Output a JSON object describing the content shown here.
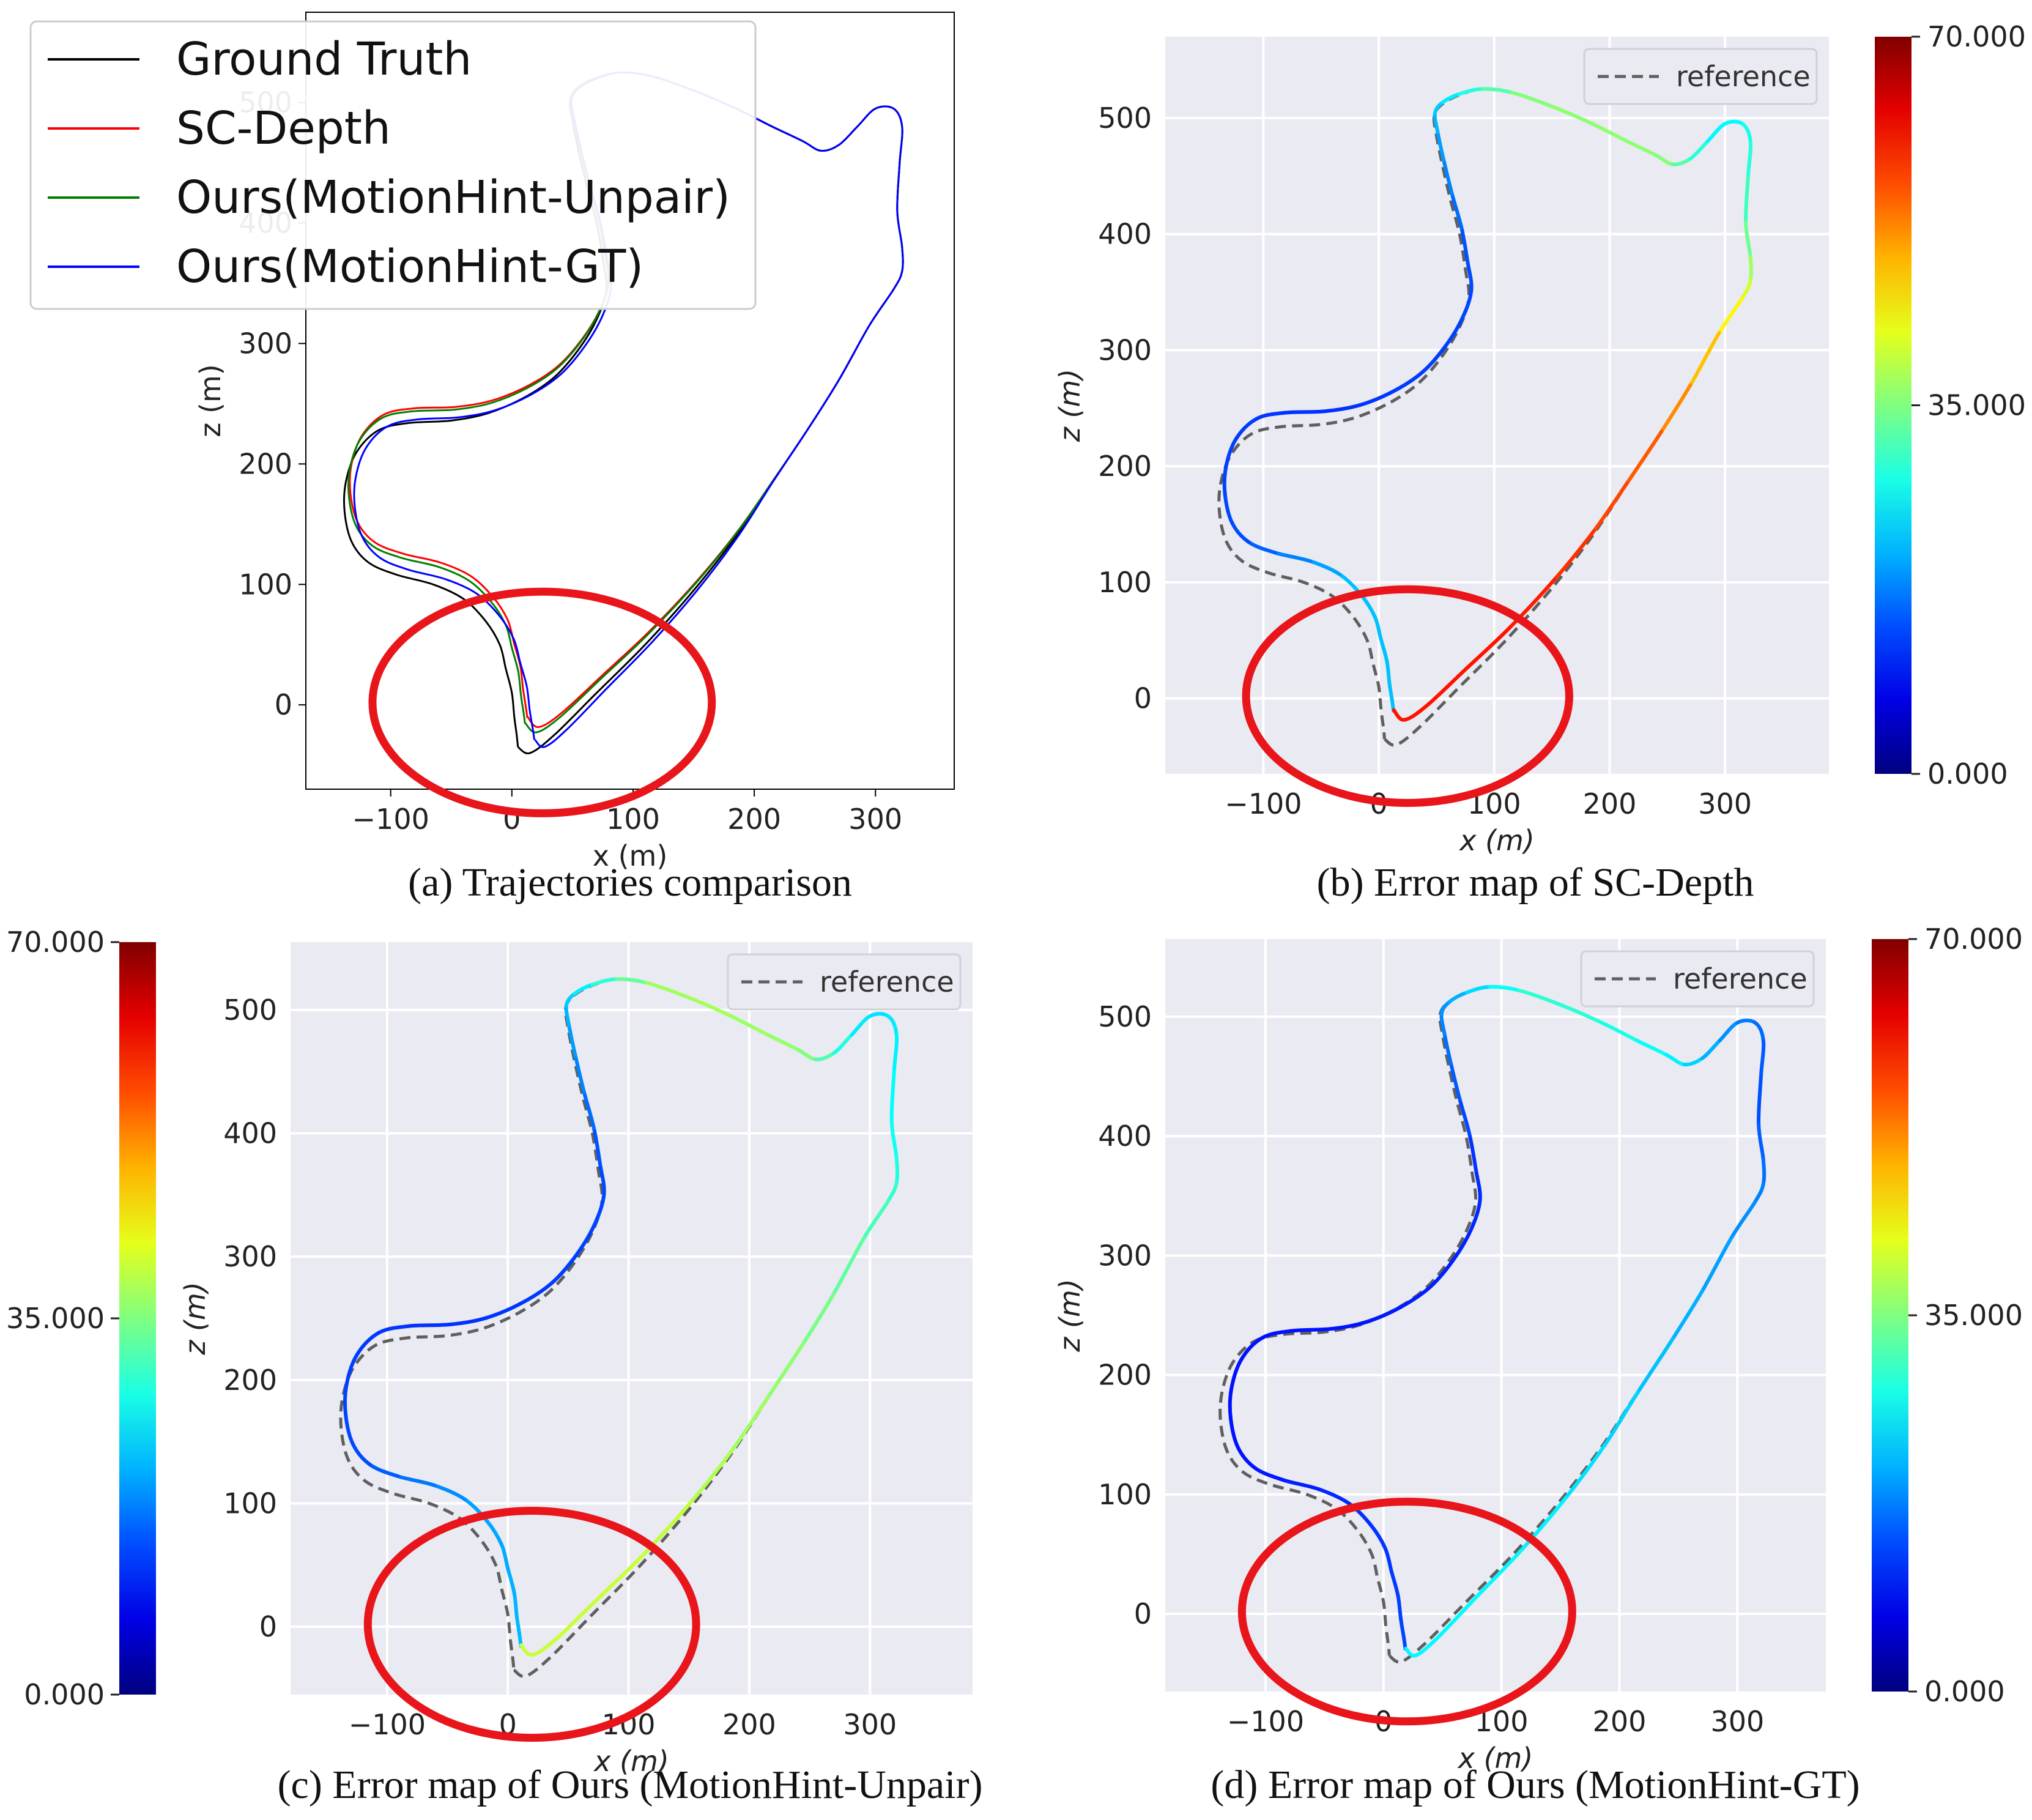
{
  "chart_data": [
    {
      "id": "a",
      "type": "line",
      "style": "plain",
      "caption": "(a) Trajectories comparison",
      "xlabel": "x (m)",
      "ylabel": "z (m)",
      "xlim": [
        -170,
        365
      ],
      "ylim": [
        -70,
        575
      ],
      "xticks": [
        "−100",
        "0",
        "100",
        "200",
        "300"
      ],
      "xtick_values": [
        -100,
        0,
        100,
        200,
        300
      ],
      "yticks": [
        "0",
        "100",
        "200",
        "300",
        "400",
        "500"
      ],
      "ytick_values": [
        0,
        100,
        200,
        300,
        400,
        500
      ],
      "legend": [
        "Ground Truth",
        "SC-Depth",
        "Ours(MotionHint-Unpair)",
        "Ours(MotionHint-GT)"
      ],
      "legend_position": "top-left",
      "series": [
        {
          "name": "Ground Truth",
          "color": "#000000",
          "offset": [
            0,
            0
          ]
        },
        {
          "name": "SC-Depth",
          "color": "#ff0000",
          "offset": [
            8,
            25
          ]
        },
        {
          "name": "Ours(MotionHint-Unpair)",
          "color": "#008000",
          "offset": [
            6,
            20
          ]
        },
        {
          "name": "Ours(MotionHint-GT)",
          "color": "#0000ff",
          "offset": [
            14,
            6
          ]
        }
      ],
      "highlight": {
        "x": 25,
        "y": 2,
        "rx": 70,
        "ry": 46,
        "color": "#e8151b"
      }
    },
    {
      "id": "b",
      "type": "line",
      "style": "seaborn",
      "caption": "(b) Error map of SC-Depth",
      "xlabel": "x (m)",
      "ylabel": "z (m)",
      "xlim": [
        -185,
        390
      ],
      "ylim": [
        -65,
        570
      ],
      "xticks": [
        "−100",
        "0",
        "100",
        "200",
        "300"
      ],
      "xtick_values": [
        -100,
        0,
        100,
        200,
        300
      ],
      "yticks": [
        "0",
        "100",
        "200",
        "300",
        "400",
        "500"
      ],
      "ytick_values": [
        0,
        100,
        200,
        300,
        400,
        500
      ],
      "legend": [
        "reference"
      ],
      "legend_position": "top-right",
      "offset": [
        8,
        25
      ],
      "error_profile": [
        [
          0,
          22
        ],
        [
          0.12,
          22
        ],
        [
          0.18,
          14
        ],
        [
          0.3,
          12
        ],
        [
          0.42,
          14
        ],
        [
          0.52,
          24
        ],
        [
          0.58,
          36
        ],
        [
          0.64,
          36
        ],
        [
          0.7,
          25
        ],
        [
          0.76,
          30
        ],
        [
          0.82,
          42
        ],
        [
          0.88,
          55
        ],
        [
          0.94,
          60
        ],
        [
          1,
          60
        ]
      ],
      "colorbar": {
        "min": 0,
        "max": 70,
        "labels": [
          "70.000",
          "35.000",
          "0.000"
        ],
        "position": "right"
      },
      "highlight": {
        "x": 25,
        "y": 2,
        "rx": 70,
        "ry": 46,
        "color": "#e8151b"
      }
    },
    {
      "id": "c",
      "type": "line",
      "style": "seaborn",
      "caption": "(c) Error map of Ours (MotionHint-Unpair)",
      "xlabel": "x (m)",
      "ylabel": "z (m)",
      "xlim": [
        -180,
        385
      ],
      "ylim": [
        -55,
        555
      ],
      "xticks": [
        "−100",
        "0",
        "100",
        "200",
        "300"
      ],
      "xtick_values": [
        -100,
        0,
        100,
        200,
        300
      ],
      "yticks": [
        "0",
        "100",
        "200",
        "300",
        "400",
        "500"
      ],
      "ytick_values": [
        0,
        100,
        200,
        300,
        400,
        500
      ],
      "legend": [
        "reference"
      ],
      "legend_position": "top-right",
      "offset": [
        6,
        20
      ],
      "error_profile": [
        [
          0,
          22
        ],
        [
          0.12,
          20
        ],
        [
          0.18,
          14
        ],
        [
          0.3,
          12
        ],
        [
          0.42,
          14
        ],
        [
          0.52,
          24
        ],
        [
          0.58,
          38
        ],
        [
          0.64,
          36
        ],
        [
          0.7,
          24
        ],
        [
          0.76,
          26
        ],
        [
          0.82,
          30
        ],
        [
          0.88,
          36
        ],
        [
          0.94,
          40
        ],
        [
          1,
          40
        ]
      ],
      "colorbar": {
        "min": 0,
        "max": 70,
        "labels": [
          "70.000",
          "35.000",
          "0.000"
        ],
        "position": "left"
      },
      "highlight": {
        "x": 20,
        "y": 2,
        "rx": 68,
        "ry": 46,
        "color": "#e8151b"
      }
    },
    {
      "id": "d",
      "type": "line",
      "style": "seaborn",
      "caption": "(d) Error map of Ours  (MotionHint-GT)",
      "xlabel": "x (m)",
      "ylabel": "z (m)",
      "xlim": [
        -185,
        375
      ],
      "ylim": [
        -65,
        565
      ],
      "xticks": [
        "−100",
        "0",
        "100",
        "200",
        "300"
      ],
      "xtick_values": [
        -100,
        0,
        100,
        200,
        300
      ],
      "yticks": [
        "0",
        "100",
        "200",
        "300",
        "400",
        "500"
      ],
      "ytick_values": [
        0,
        100,
        200,
        300,
        400,
        500
      ],
      "legend": [
        "reference"
      ],
      "legend_position": "top-right",
      "offset": [
        14,
        6
      ],
      "error_profile": [
        [
          0,
          14
        ],
        [
          0.12,
          12
        ],
        [
          0.18,
          10
        ],
        [
          0.3,
          10
        ],
        [
          0.42,
          12
        ],
        [
          0.52,
          20
        ],
        [
          0.58,
          30
        ],
        [
          0.64,
          26
        ],
        [
          0.7,
          18
        ],
        [
          0.76,
          14
        ],
        [
          0.82,
          18
        ],
        [
          0.88,
          22
        ],
        [
          0.94,
          26
        ],
        [
          1,
          26
        ]
      ],
      "colorbar": {
        "min": 0,
        "max": 70,
        "labels": [
          "70.000",
          "35.000",
          "0.000"
        ],
        "position": "right"
      },
      "highlight": {
        "x": 20,
        "y": 2,
        "rx": 70,
        "ry": 46,
        "color": "#e8151b"
      }
    }
  ],
  "reference_trajectory": [
    [
      5,
      -35
    ],
    [
      15,
      -40
    ],
    [
      35,
      -25
    ],
    [
      70,
      10
    ],
    [
      110,
      50
    ],
    [
      150,
      95
    ],
    [
      185,
      140
    ],
    [
      215,
      185
    ],
    [
      245,
      230
    ],
    [
      270,
      270
    ],
    [
      295,
      315
    ],
    [
      315,
      345
    ],
    [
      322,
      360
    ],
    [
      322,
      380
    ],
    [
      318,
      410
    ],
    [
      320,
      450
    ],
    [
      322,
      480
    ],
    [
      315,
      495
    ],
    [
      300,
      495
    ],
    [
      285,
      480
    ],
    [
      270,
      465
    ],
    [
      255,
      460
    ],
    [
      240,
      468
    ],
    [
      215,
      480
    ],
    [
      185,
      495
    ],
    [
      150,
      510
    ],
    [
      115,
      522
    ],
    [
      90,
      525
    ],
    [
      70,
      520
    ],
    [
      55,
      512
    ],
    [
      48,
      502
    ],
    [
      50,
      485
    ],
    [
      55,
      460
    ],
    [
      62,
      430
    ],
    [
      70,
      400
    ],
    [
      75,
      370
    ],
    [
      78,
      345
    ],
    [
      70,
      320
    ],
    [
      55,
      295
    ],
    [
      35,
      272
    ],
    [
      10,
      255
    ],
    [
      -20,
      242
    ],
    [
      -50,
      236
    ],
    [
      -85,
      234
    ],
    [
      -110,
      228
    ],
    [
      -128,
      210
    ],
    [
      -137,
      185
    ],
    [
      -138,
      160
    ],
    [
      -132,
      135
    ],
    [
      -118,
      118
    ],
    [
      -95,
      108
    ],
    [
      -65,
      100
    ],
    [
      -40,
      88
    ],
    [
      -22,
      70
    ],
    [
      -10,
      50
    ],
    [
      -5,
      30
    ],
    [
      0,
      10
    ],
    [
      2,
      -10
    ],
    [
      4,
      -25
    ],
    [
      5,
      -35
    ]
  ]
}
